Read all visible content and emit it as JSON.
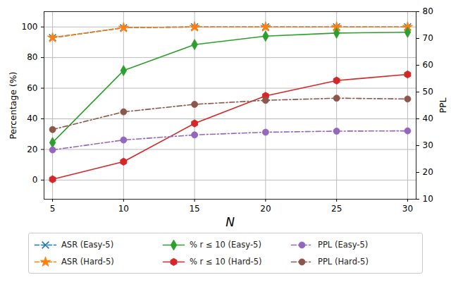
{
  "chart_data": {
    "type": "line",
    "x_label": "N",
    "y_label": "Percentage (%)",
    "y2_label": "PPL",
    "x": [
      5,
      10,
      15,
      20,
      25,
      30
    ],
    "xlim": [
      4.4,
      30.6
    ],
    "xticks": [
      5,
      10,
      15,
      20,
      25,
      30
    ],
    "ylim": [
      -12.5,
      110
    ],
    "yticks": [
      0,
      20,
      40,
      60,
      80,
      100
    ],
    "y2lim": [
      10,
      80
    ],
    "y2ticks": [
      10,
      20,
      30,
      40,
      50,
      60,
      70,
      80
    ],
    "grid": true,
    "legend": "bottom",
    "series": [
      {
        "name": "ASR (Easy-5)",
        "color": "#1f77b4",
        "marker": "x",
        "line_style": "dashed",
        "values": [
          93,
          99.5,
          100,
          100,
          100,
          100
        ]
      },
      {
        "name": "ASR (Hard-5)",
        "color": "#ff7f0e",
        "marker": "star",
        "line_style": "dashed",
        "values": [
          93,
          99.5,
          100,
          100,
          100,
          100
        ]
      },
      {
        "name": "% r ≤ 10 (Easy-5)",
        "color": "#2ca02c",
        "marker": "diamond",
        "line_style": "solid",
        "values": [
          24.5,
          71.5,
          88.5,
          94,
          96,
          96.5
        ]
      },
      {
        "name": "% r ≤ 10 (Hard-5)",
        "color": "#d62728",
        "marker": "pentagon",
        "line_style": "solid",
        "values": [
          0.5,
          12,
          37,
          55,
          65,
          69
        ]
      },
      {
        "name": "PPL (Easy-5)",
        "color": "#9467bd",
        "marker": "circle",
        "line_style": "dashdot",
        "axis": "y2",
        "values": [
          28.4,
          32.1,
          34,
          35,
          35.4,
          35.5
        ]
      },
      {
        "name": "PPL (Hard-5)",
        "color": "#8c564b",
        "marker": "circle",
        "line_style": "dashdot",
        "axis": "y2",
        "values": [
          36,
          42.6,
          45.4,
          46.9,
          47.7,
          47.4
        ]
      }
    ]
  }
}
